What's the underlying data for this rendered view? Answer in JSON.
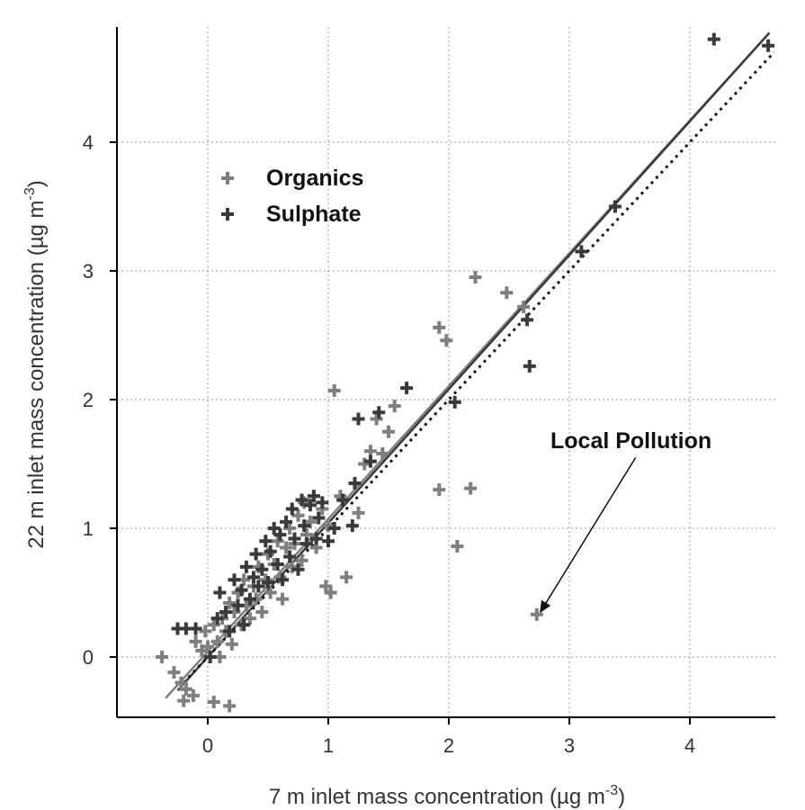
{
  "chart_data": {
    "type": "scatter",
    "title": "",
    "xlabel": "7 m inlet mass concentration (µg m",
    "xlabel_sup": "-3",
    "xlabel_end": ")",
    "ylabel": "22 m inlet mass concentration (µg m",
    "ylabel_sup": "-3",
    "ylabel_end": ")",
    "xlim": [
      -0.75,
      4.7
    ],
    "ylim": [
      -0.47,
      4.9
    ],
    "grid": true,
    "legend_placement": "top-left",
    "x_ticks": [
      0,
      1,
      2,
      3,
      4
    ],
    "y_ticks": [
      0,
      1,
      2,
      3,
      4
    ],
    "series": [
      {
        "name": "Organics",
        "color": "#7f7f7f",
        "points": [
          [
            -0.38,
            0.0
          ],
          [
            -0.28,
            -0.12
          ],
          [
            -0.22,
            -0.2
          ],
          [
            -0.18,
            -0.25
          ],
          [
            -0.2,
            -0.34
          ],
          [
            -0.12,
            -0.3
          ],
          [
            -0.1,
            0.12
          ],
          [
            -0.05,
            0.05
          ],
          [
            -0.02,
            0.2
          ],
          [
            0.05,
            0.25
          ],
          [
            0.08,
            0.12
          ],
          [
            0.1,
            0.0
          ],
          [
            0.12,
            0.3
          ],
          [
            0.15,
            0.2
          ],
          [
            0.18,
            0.42
          ],
          [
            0.2,
            0.1
          ],
          [
            0.22,
            0.35
          ],
          [
            0.25,
            0.5
          ],
          [
            0.28,
            0.25
          ],
          [
            0.3,
            0.6
          ],
          [
            0.32,
            0.4
          ],
          [
            0.35,
            0.3
          ],
          [
            0.38,
            0.55
          ],
          [
            0.4,
            0.45
          ],
          [
            0.42,
            0.7
          ],
          [
            0.45,
            0.35
          ],
          [
            0.48,
            0.6
          ],
          [
            0.5,
            0.8
          ],
          [
            0.52,
            0.5
          ],
          [
            0.55,
            0.72
          ],
          [
            0.58,
            0.9
          ],
          [
            0.6,
            0.62
          ],
          [
            0.62,
            0.45
          ],
          [
            0.65,
            0.85
          ],
          [
            0.68,
            1.0
          ],
          [
            0.7,
            0.7
          ],
          [
            0.72,
            0.88
          ],
          [
            0.75,
            1.1
          ],
          [
            0.78,
            0.75
          ],
          [
            0.8,
            1.2
          ],
          [
            0.82,
            0.95
          ],
          [
            0.85,
            1.05
          ],
          [
            0.88,
            1.25
          ],
          [
            0.9,
            0.85
          ],
          [
            0.95,
            1.15
          ],
          [
            0.98,
            0.55
          ],
          [
            1.0,
            1.02
          ],
          [
            1.02,
            0.5
          ],
          [
            1.05,
            2.07
          ],
          [
            1.1,
            1.25
          ],
          [
            1.15,
            0.62
          ],
          [
            1.25,
            1.12
          ],
          [
            1.3,
            1.5
          ],
          [
            1.35,
            1.6
          ],
          [
            1.4,
            1.85
          ],
          [
            1.45,
            1.58
          ],
          [
            1.5,
            1.75
          ],
          [
            1.55,
            1.95
          ],
          [
            1.92,
            2.56
          ],
          [
            1.98,
            2.46
          ],
          [
            2.22,
            2.95
          ],
          [
            2.48,
            2.83
          ],
          [
            2.62,
            2.72
          ],
          [
            1.92,
            1.3
          ],
          [
            2.18,
            1.31
          ],
          [
            2.07,
            0.86
          ],
          [
            2.73,
            0.33
          ],
          [
            0.05,
            -0.35
          ],
          [
            0.18,
            -0.38
          ],
          [
            0.0,
            0.08
          ]
        ]
      },
      {
        "name": "Sulphate",
        "color": "#3a3a3a",
        "points": [
          [
            -0.25,
            0.22
          ],
          [
            -0.18,
            0.22
          ],
          [
            -0.1,
            0.22
          ],
          [
            0.02,
            0.0
          ],
          [
            0.08,
            0.3
          ],
          [
            0.1,
            0.5
          ],
          [
            0.15,
            0.35
          ],
          [
            0.18,
            0.2
          ],
          [
            0.22,
            0.6
          ],
          [
            0.25,
            0.4
          ],
          [
            0.28,
            0.52
          ],
          [
            0.3,
            0.25
          ],
          [
            0.32,
            0.7
          ],
          [
            0.35,
            0.45
          ],
          [
            0.38,
            0.62
          ],
          [
            0.4,
            0.8
          ],
          [
            0.42,
            0.55
          ],
          [
            0.45,
            0.68
          ],
          [
            0.48,
            0.9
          ],
          [
            0.5,
            0.58
          ],
          [
            0.52,
            0.82
          ],
          [
            0.55,
            1.0
          ],
          [
            0.58,
            0.72
          ],
          [
            0.6,
            0.95
          ],
          [
            0.62,
            0.6
          ],
          [
            0.65,
            1.05
          ],
          [
            0.68,
            0.78
          ],
          [
            0.7,
            1.15
          ],
          [
            0.72,
            0.92
          ],
          [
            0.75,
            0.68
          ],
          [
            0.78,
            1.22
          ],
          [
            0.8,
            1.02
          ],
          [
            0.82,
            0.88
          ],
          [
            0.85,
            1.18
          ],
          [
            0.88,
            1.25
          ],
          [
            0.9,
            0.92
          ],
          [
            0.92,
            1.08
          ],
          [
            0.95,
            1.2
          ],
          [
            1.0,
            0.9
          ],
          [
            1.05,
            1.0
          ],
          [
            1.12,
            1.22
          ],
          [
            1.2,
            1.02
          ],
          [
            1.22,
            1.35
          ],
          [
            1.25,
            1.85
          ],
          [
            1.35,
            1.52
          ],
          [
            1.42,
            1.9
          ],
          [
            1.65,
            2.09
          ],
          [
            2.05,
            1.98
          ],
          [
            2.65,
            2.62
          ],
          [
            2.67,
            2.26
          ],
          [
            3.1,
            3.15
          ],
          [
            3.38,
            3.5
          ],
          [
            4.2,
            4.8
          ],
          [
            4.65,
            4.75
          ]
        ]
      }
    ],
    "fit_lines": [
      {
        "name": "Organics fit",
        "style": "solid",
        "color": "#7f7f7f",
        "from": [
          -0.35,
          -0.32
        ],
        "to": [
          4.66,
          4.85
        ]
      },
      {
        "name": "Sulphate fit",
        "style": "solid",
        "color": "#3a3a3a",
        "from": [
          -0.25,
          -0.26
        ],
        "to": [
          4.66,
          4.85
        ]
      },
      {
        "name": "1:1",
        "style": "dotted",
        "color": "#111111",
        "from": [
          -0.2,
          -0.2
        ],
        "to": [
          4.7,
          4.7
        ]
      }
    ],
    "annotations": [
      {
        "text": "Local Pollution",
        "arrow_from": [
          3.55,
          1.55
        ],
        "arrow_to": [
          2.76,
          0.35
        ]
      }
    ]
  }
}
